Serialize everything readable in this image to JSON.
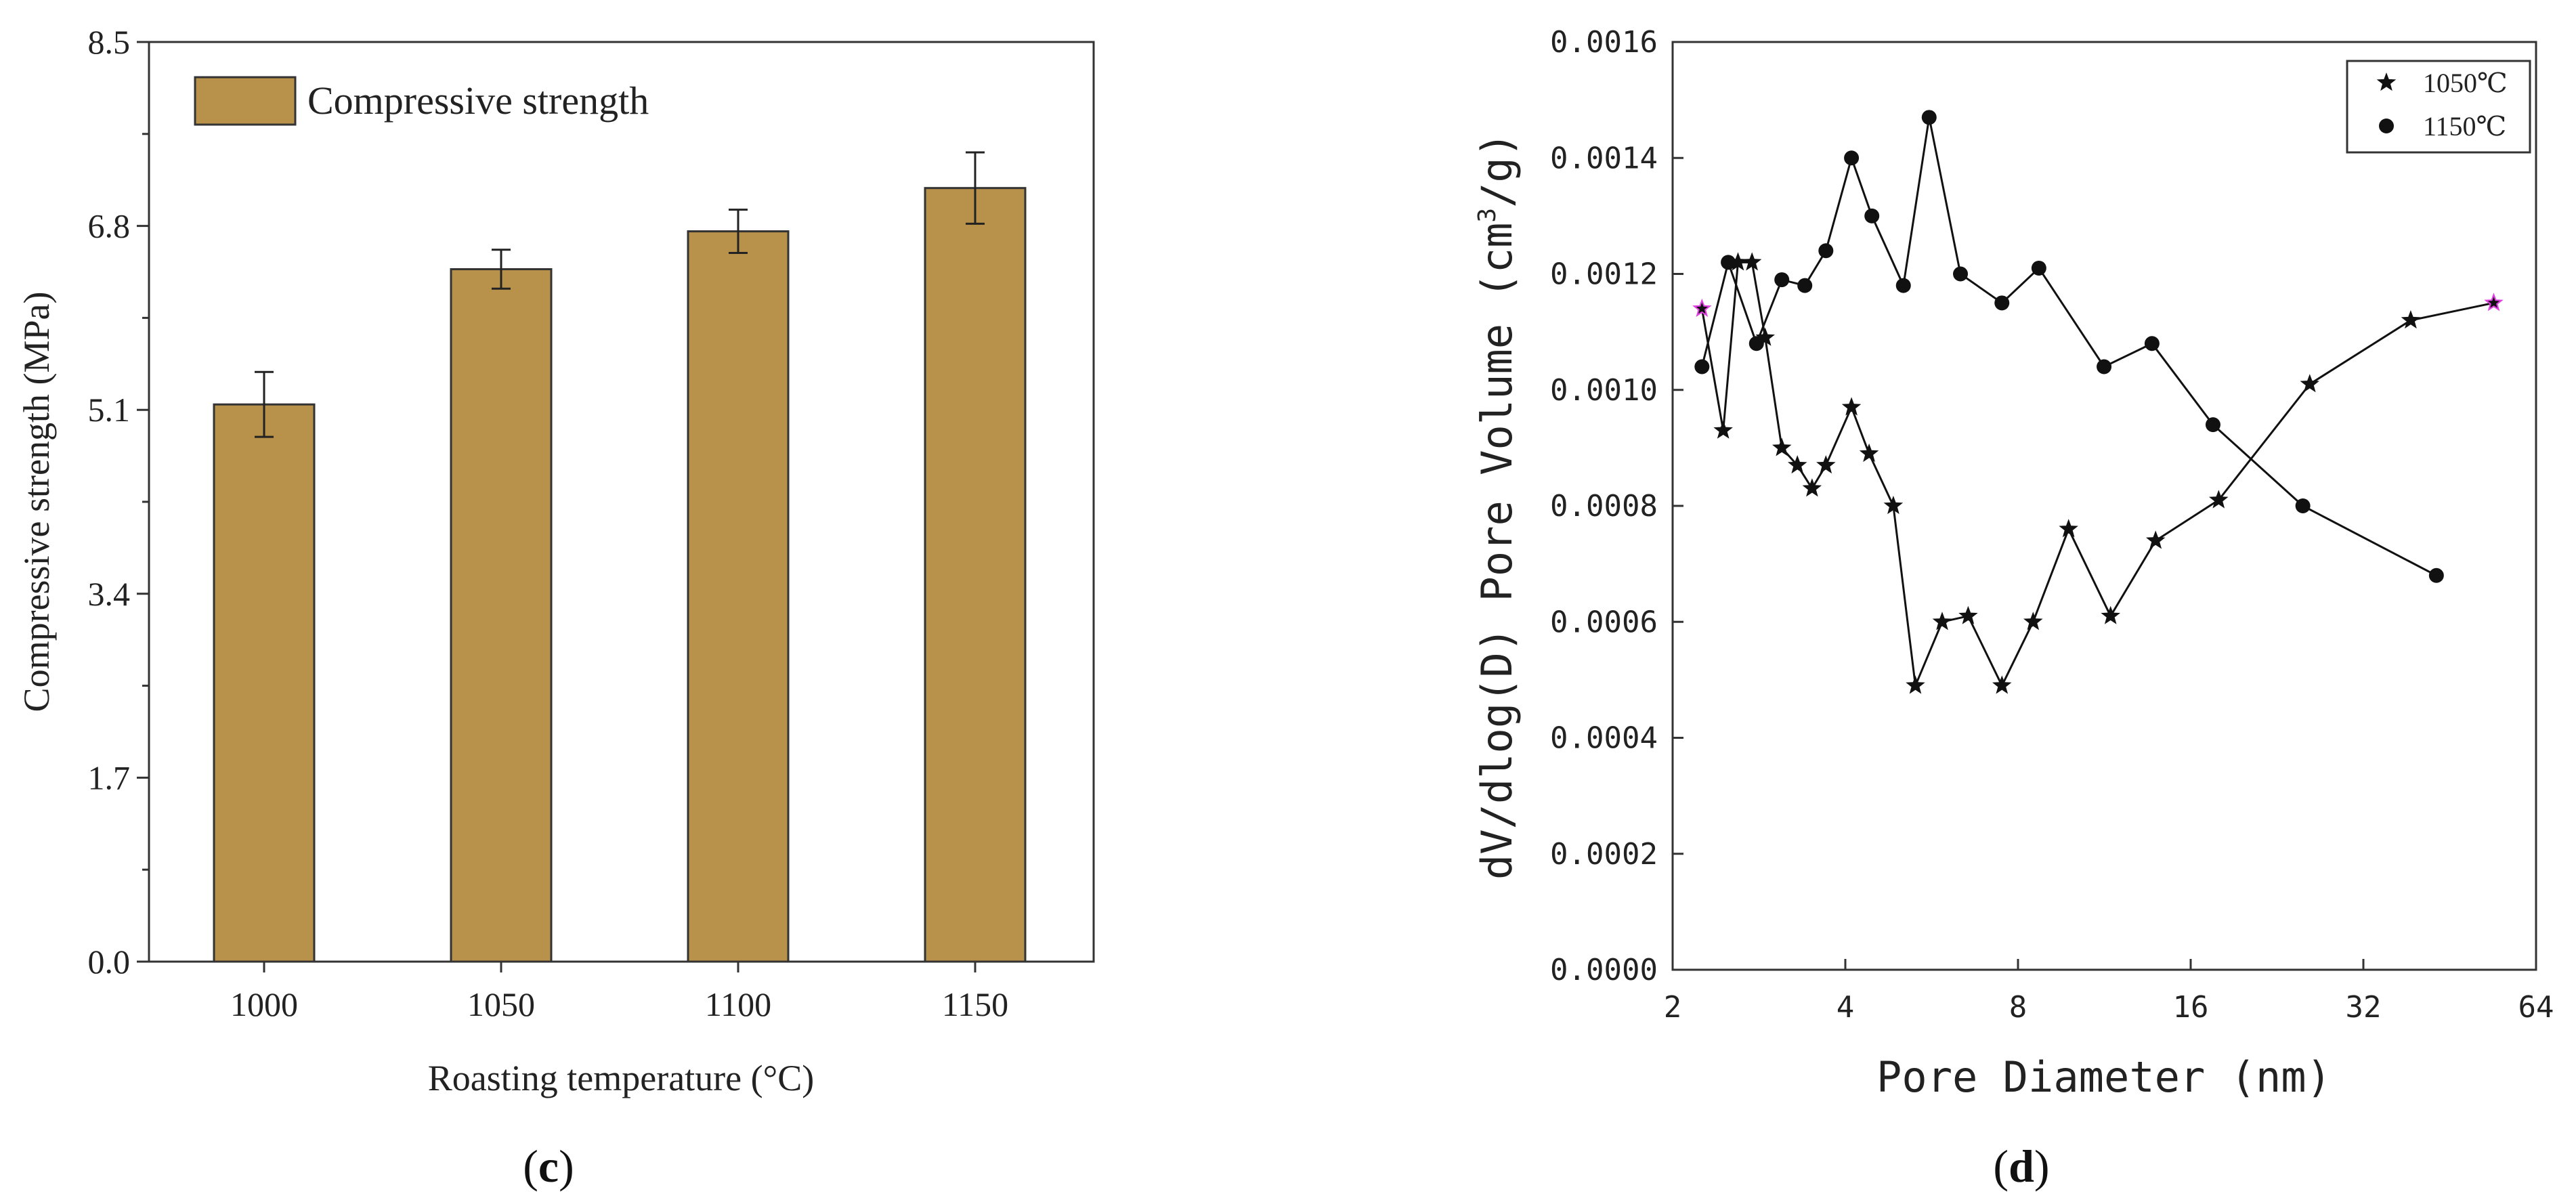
{
  "chart_data": [
    {
      "type": "bar",
      "panel_label_open": "(",
      "panel_label_letter": "c",
      "panel_label_close": ")",
      "title": "",
      "legend": "Compressive strength",
      "xlabel": "Roasting temperature (°C)",
      "ylabel": "Compressive strength (MPa)",
      "categories": [
        "1000",
        "1050",
        "1100",
        "1150"
      ],
      "values": [
        5.15,
        6.4,
        6.75,
        7.15
      ],
      "errors": [
        0.3,
        0.18,
        0.2,
        0.33
      ],
      "ylim": [
        0,
        8.5
      ],
      "yticks": [
        0,
        1.7,
        3.4,
        5.1,
        6.8,
        8.5
      ],
      "ytick_labels": [
        "0.0",
        "1.7",
        "3.4",
        "5.1",
        "6.8",
        "8.5"
      ],
      "bar_color": "#b8914a"
    },
    {
      "type": "line",
      "panel_label_open": "(",
      "panel_label_letter": "d",
      "panel_label_close": ")",
      "title": "",
      "xlabel": "Pore Diameter (nm)",
      "ylabel_prefix": "dV/dlog(D) Pore Volume (cm",
      "ylabel_sup": "3",
      "ylabel_suffix": "/g)",
      "x_scale": "log2",
      "xlim": [
        2,
        64
      ],
      "xticks": [
        2,
        4,
        8,
        16,
        32,
        64
      ],
      "xtick_labels": [
        "2",
        "4",
        "8",
        "16",
        "32",
        "64"
      ],
      "ylim": [
        0,
        0.0016
      ],
      "yticks": [
        0,
        0.0002,
        0.0004,
        0.0006,
        0.0008,
        0.001,
        0.0012,
        0.0014,
        0.0016
      ],
      "ytick_labels": [
        "0.0000",
        "0.0002",
        "0.0004",
        "0.0006",
        "0.0008",
        "0.0010",
        "0.0012",
        "0.0014",
        "0.0016"
      ],
      "legend_position": "top-right",
      "series": [
        {
          "name": "1050℃",
          "marker": "star",
          "x": [
            2.25,
            2.45,
            2.6,
            2.75,
            2.9,
            3.1,
            3.3,
            3.5,
            3.7,
            4.1,
            4.4,
            4.85,
            5.3,
            5.9,
            6.55,
            7.5,
            8.5,
            9.8,
            11.6,
            13.9,
            17.9,
            25.8,
            38.7,
            54.0
          ],
          "y": [
            0.00114,
            0.00093,
            0.00122,
            0.00122,
            0.00109,
            0.0009,
            0.00087,
            0.00083,
            0.00087,
            0.00097,
            0.00089,
            0.0008,
            0.00049,
            0.0006,
            0.00061,
            0.00049,
            0.0006,
            0.00076,
            0.00061,
            0.00074,
            0.00081,
            0.00101,
            0.00112,
            0.00115
          ]
        },
        {
          "name": "1150℃",
          "marker": "circle",
          "x": [
            2.25,
            2.5,
            2.8,
            3.1,
            3.4,
            3.7,
            4.1,
            4.45,
            5.05,
            5.6,
            6.35,
            7.5,
            8.7,
            11.3,
            13.7,
            17.5,
            25.1,
            42.9
          ],
          "y": [
            0.00104,
            0.00122,
            0.00108,
            0.00119,
            0.00118,
            0.00124,
            0.0014,
            0.0013,
            0.00118,
            0.00147,
            0.0012,
            0.00115,
            0.00121,
            0.00104,
            0.00108,
            0.00094,
            0.0008,
            0.00068
          ]
        }
      ],
      "highlight_color": "#e040e0"
    }
  ]
}
